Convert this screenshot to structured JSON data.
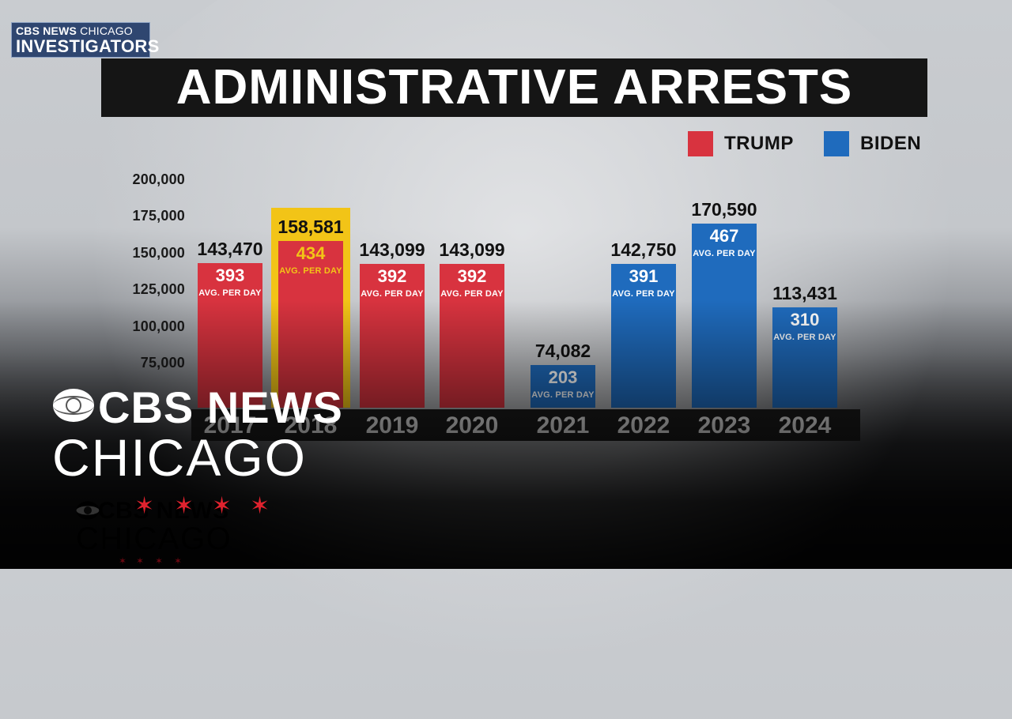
{
  "brand": {
    "cbs_news": "CBS NEWS",
    "chicago": "CHICAGO",
    "investigators": "INVESTIGATORS"
  },
  "title": "ADMINISTRATIVE ARRESTS",
  "legend": [
    {
      "label": "TRUMP",
      "color": "#d8333f"
    },
    {
      "label": "BIDEN",
      "color": "#1f6bbd"
    }
  ],
  "colors": {
    "trump": "#d8333f",
    "biden": "#1f6bbd",
    "highlight": "#f2c417",
    "highlight_text": "#f2c417"
  },
  "chart_data": {
    "type": "bar",
    "title": "ADMINISTRATIVE ARRESTS",
    "categories": [
      "2017",
      "2018",
      "2019",
      "2020",
      "2021",
      "2022",
      "2023",
      "2024"
    ],
    "values": [
      143470,
      158581,
      143099,
      143099,
      74082,
      142750,
      170590,
      113431
    ],
    "value_labels": [
      "143,470",
      "158,581",
      "143,099",
      "143,099",
      "74,082",
      "142,750",
      "170,590",
      "113,431"
    ],
    "avg_per_day": [
      "393",
      "434",
      "392",
      "392",
      "203",
      "391",
      "467",
      "310"
    ],
    "avg_label": "AVG. PER DAY",
    "administration": [
      "TRUMP",
      "TRUMP",
      "TRUMP",
      "TRUMP",
      "BIDEN",
      "BIDEN",
      "BIDEN",
      "BIDEN"
    ],
    "highlighted_category": "2018",
    "yticks": [
      "200,000",
      "175,000",
      "150,000",
      "125,000",
      "100,000",
      "75,000"
    ],
    "ytick_values": [
      200000,
      175000,
      150000,
      125000,
      100000,
      75000
    ],
    "ylim": [
      40000,
      200000
    ],
    "legend_position": "top-right",
    "grid": false
  },
  "watermark": {
    "cbs_news": "CBS NEWS",
    "chicago": "CHICAGO",
    "stars": [
      "✶",
      "✶",
      "✶",
      "✶"
    ]
  }
}
